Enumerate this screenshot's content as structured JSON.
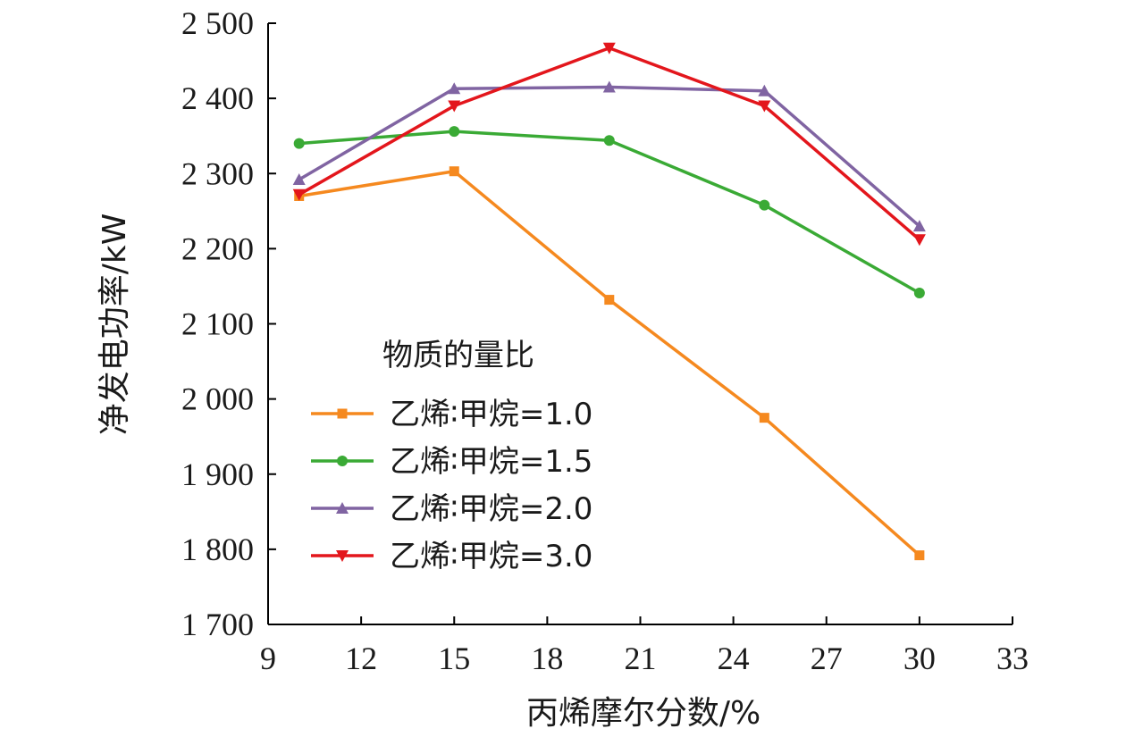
{
  "chart_data": {
    "type": "line",
    "title": "",
    "xlabel": "丙烯摩尔分数/%",
    "ylabel": "净发电功率/kW",
    "xlim": [
      9,
      33
    ],
    "ylim": [
      1700,
      2500
    ],
    "x_ticks": [
      9,
      12,
      15,
      18,
      21,
      24,
      27,
      30,
      33
    ],
    "x_tick_labels": [
      "9",
      "12",
      "15",
      "18",
      "21",
      "24",
      "27",
      "30",
      "33"
    ],
    "y_ticks": [
      1700,
      1800,
      1900,
      2000,
      2100,
      2200,
      2300,
      2400,
      2500
    ],
    "y_tick_labels": [
      "1 700",
      "1 800",
      "1 900",
      "2 000",
      "2 100",
      "2 200",
      "2 300",
      "2 400",
      "2 500"
    ],
    "grid": false,
    "legend": {
      "title": "物质的量比",
      "placement": "center-left"
    },
    "x": [
      10,
      15,
      20,
      25,
      30
    ],
    "series": [
      {
        "name": "乙烯∶甲烷=1.0",
        "color": "#f5891f",
        "marker": "square",
        "values": [
          2270,
          2303,
          2132,
          1975,
          1792
        ]
      },
      {
        "name": "乙烯∶甲烷=1.5",
        "color": "#3aaa35",
        "marker": "circle",
        "values": [
          2340,
          2356,
          2344,
          2258,
          2141
        ]
      },
      {
        "name": "乙烯∶甲烷=2.0",
        "color": "#8064a2",
        "marker": "triangle-up",
        "values": [
          2292,
          2413,
          2415,
          2410,
          2230
        ]
      },
      {
        "name": "乙烯∶甲烷=3.0",
        "color": "#e3161c",
        "marker": "triangle-down",
        "values": [
          2272,
          2390,
          2467,
          2390,
          2212
        ]
      }
    ]
  }
}
